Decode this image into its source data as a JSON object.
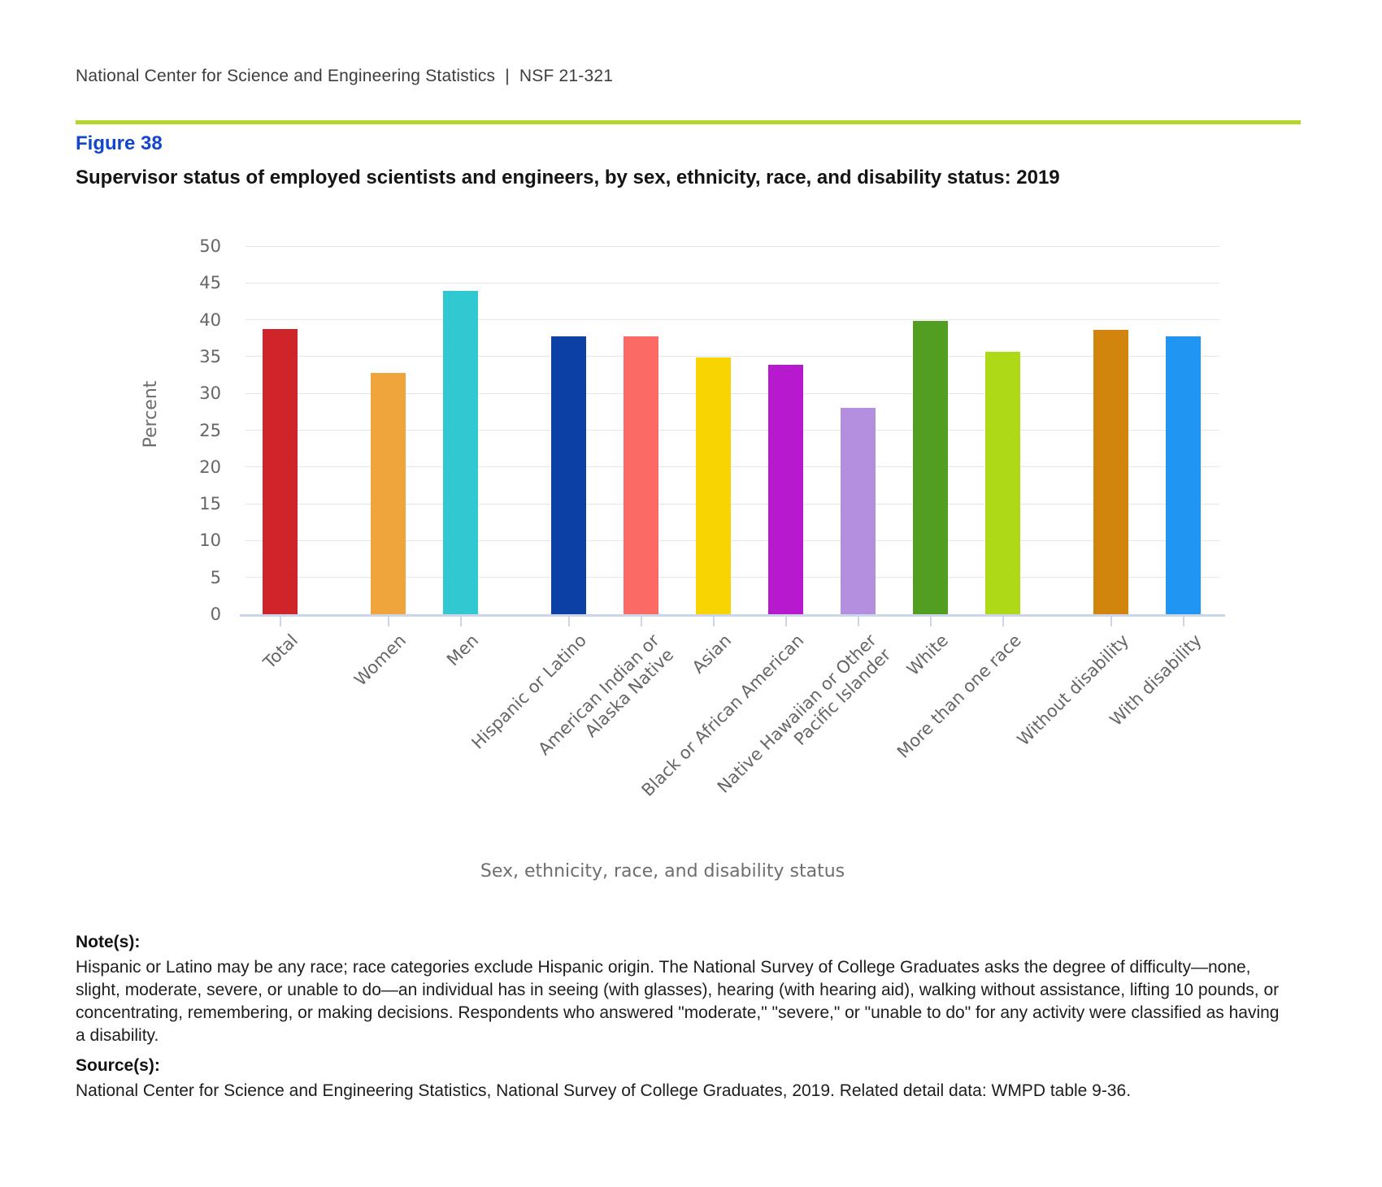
{
  "header": {
    "agency": "National Center for Science and Engineering Statistics",
    "separator": "|",
    "report_number": "NSF 21-321"
  },
  "figure": {
    "label": "Figure 38",
    "title": "Supervisor status of employed scientists and engineers, by sex, ethnicity, race, and disability status: 2019"
  },
  "chart_data": {
    "type": "bar",
    "title": "",
    "xlabel": "Sex, ethnicity, race, and disability status",
    "ylabel": "Percent",
    "ylim": [
      0,
      50
    ],
    "ytick_step": 5,
    "grid": true,
    "legend": "none",
    "categories": [
      "Total",
      "Women",
      "Men",
      "Hispanic or Latino",
      "American Indian or\nAlaska Native",
      "Asian",
      "Black or African American",
      "Native Hawaiian or Other\nPacific Islander",
      "White",
      "More than one race",
      "Without disability",
      "With disability"
    ],
    "values": [
      38.7,
      32.8,
      43.9,
      37.8,
      37.8,
      34.9,
      33.9,
      28.0,
      39.8,
      35.7,
      38.6,
      37.7
    ],
    "colors": [
      "#d0242b",
      "#f0a43c",
      "#30c8d1",
      "#0c40a5",
      "#fb6a64",
      "#f9d403",
      "#b719ce",
      "#b48fe0",
      "#519e20",
      "#aed916",
      "#d2850c",
      "#2095f2"
    ],
    "groups": [
      "total",
      "sex",
      "sex",
      "ethnicity-race",
      "ethnicity-race",
      "ethnicity-race",
      "ethnicity-race",
      "ethnicity-race",
      "ethnicity-race",
      "ethnicity-race",
      "disability",
      "disability"
    ]
  },
  "axis_theme": {
    "gridline_color": "#e6e6e6",
    "axis_line_color": "#ccd6eb",
    "label_color": "#666666"
  },
  "notes": {
    "heading": "Note(s):",
    "body": "Hispanic or Latino may be any race; race categories exclude Hispanic origin. The National Survey of College Graduates asks the degree of difficulty—none, slight, moderate, severe, or unable to do—an individual has in seeing (with glasses), hearing (with hearing aid), walking without assistance, lifting 10 pounds, or concentrating, remembering, or making decisions. Respondents who answered \"moderate,\" \"severe,\" or \"unable to do\" for any activity were classified as having a disability."
  },
  "sources": {
    "heading": "Source(s):",
    "body": "National Center for Science and Engineering Statistics, National Survey of College Graduates, 2019. Related detail data: WMPD table 9-36."
  }
}
